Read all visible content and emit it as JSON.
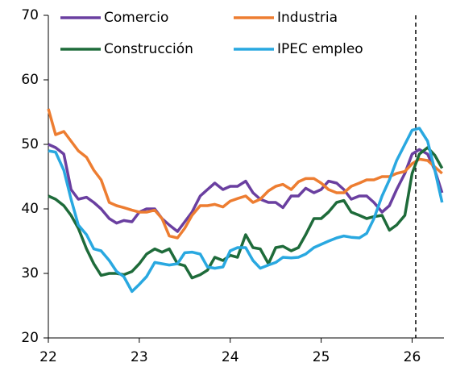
{
  "chart_data": {
    "type": "line",
    "x": [
      22,
      22.08,
      22.17,
      22.25,
      22.33,
      22.42,
      22.5,
      22.58,
      22.67,
      22.75,
      22.83,
      22.92,
      23,
      23.08,
      23.17,
      23.25,
      23.33,
      23.42,
      23.5,
      23.58,
      23.67,
      23.75,
      23.83,
      23.92,
      24,
      24.08,
      24.17,
      24.25,
      24.33,
      24.42,
      24.5,
      24.58,
      24.67,
      24.75,
      24.83,
      24.92,
      25,
      25.08,
      25.17,
      25.25,
      25.33,
      25.42,
      25.5,
      25.58,
      25.67,
      25.75,
      25.83,
      25.92,
      26,
      26.08,
      26.17,
      26.25,
      26.33
    ],
    "series": [
      {
        "name": "Comercio",
        "color": "#6a3fa0",
        "values": [
          50,
          49.5,
          48.5,
          43,
          41.5,
          41.8,
          41,
          40,
          38.5,
          37.8,
          38.2,
          38,
          39.5,
          40,
          40,
          38.5,
          37.5,
          36.5,
          38,
          39.5,
          42,
          43,
          44,
          43,
          43.5,
          43.5,
          44.3,
          42.5,
          41.5,
          41,
          41,
          40.2,
          42,
          42,
          43.2,
          42.5,
          43,
          44.3,
          44,
          43,
          41.5,
          42,
          42,
          41,
          39.5,
          40.5,
          43,
          45.5,
          48.5,
          49.2,
          48.5,
          46,
          42.5
        ]
      },
      {
        "name": "Industria",
        "color": "#ed7d31",
        "values": [
          55.5,
          51.5,
          52,
          50.5,
          49,
          48,
          46,
          44.5,
          41,
          40.5,
          40.2,
          39.8,
          39.5,
          39.5,
          39.8,
          38.5,
          35.8,
          35.5,
          37,
          39,
          40.5,
          40.5,
          40.7,
          40.3,
          41.2,
          41.6,
          42,
          41,
          41.5,
          42.8,
          43.5,
          43.8,
          43,
          44.2,
          44.7,
          44.7,
          44,
          43,
          42.5,
          42.5,
          43.5,
          44,
          44.5,
          44.5,
          45,
          45,
          45.5,
          45.8,
          47,
          47.7,
          47.5,
          46.5,
          45.5
        ]
      },
      {
        "name": "Construcción",
        "color": "#1e6b3a",
        "values": [
          42,
          41.5,
          40.5,
          39,
          37,
          33.8,
          31.5,
          29.7,
          30,
          30,
          29.8,
          30.3,
          31.5,
          33,
          33.8,
          33.3,
          33.8,
          31.5,
          31.2,
          29.3,
          29.8,
          30.5,
          32.5,
          32,
          32.8,
          32.5,
          36,
          34,
          33.8,
          31.5,
          34,
          34.2,
          33.5,
          34,
          36,
          38.5,
          38.5,
          39.5,
          41,
          41.3,
          39.5,
          39,
          38.5,
          38.8,
          39,
          36.7,
          37.5,
          39,
          45.5,
          48.5,
          49.5,
          48.3,
          46.3
        ]
      },
      {
        "name": "IPEC empleo",
        "color": "#29a8e0",
        "values": [
          49,
          48.8,
          46,
          41.5,
          37.5,
          36,
          33.8,
          33.5,
          32,
          30.3,
          29.5,
          27.2,
          28.3,
          29.5,
          31.7,
          31.5,
          31.3,
          31.5,
          33.2,
          33.3,
          33,
          31,
          30.8,
          31,
          33.5,
          34,
          34,
          32,
          30.8,
          31.3,
          31.7,
          32.5,
          32.4,
          32.5,
          33,
          34,
          34.5,
          35,
          35.5,
          35.8,
          35.6,
          35.5,
          36.2,
          38.5,
          42,
          44.5,
          47.5,
          50,
          52.2,
          52.5,
          50.5,
          46,
          41
        ]
      }
    ],
    "xlim": [
      22,
      26.35
    ],
    "xticks": [
      22,
      23,
      24,
      25,
      26
    ],
    "ylim": [
      20,
      70
    ],
    "yticks": [
      20,
      30,
      40,
      50,
      60,
      70
    ],
    "vline": 26.04,
    "legend": "top",
    "grid": false
  }
}
